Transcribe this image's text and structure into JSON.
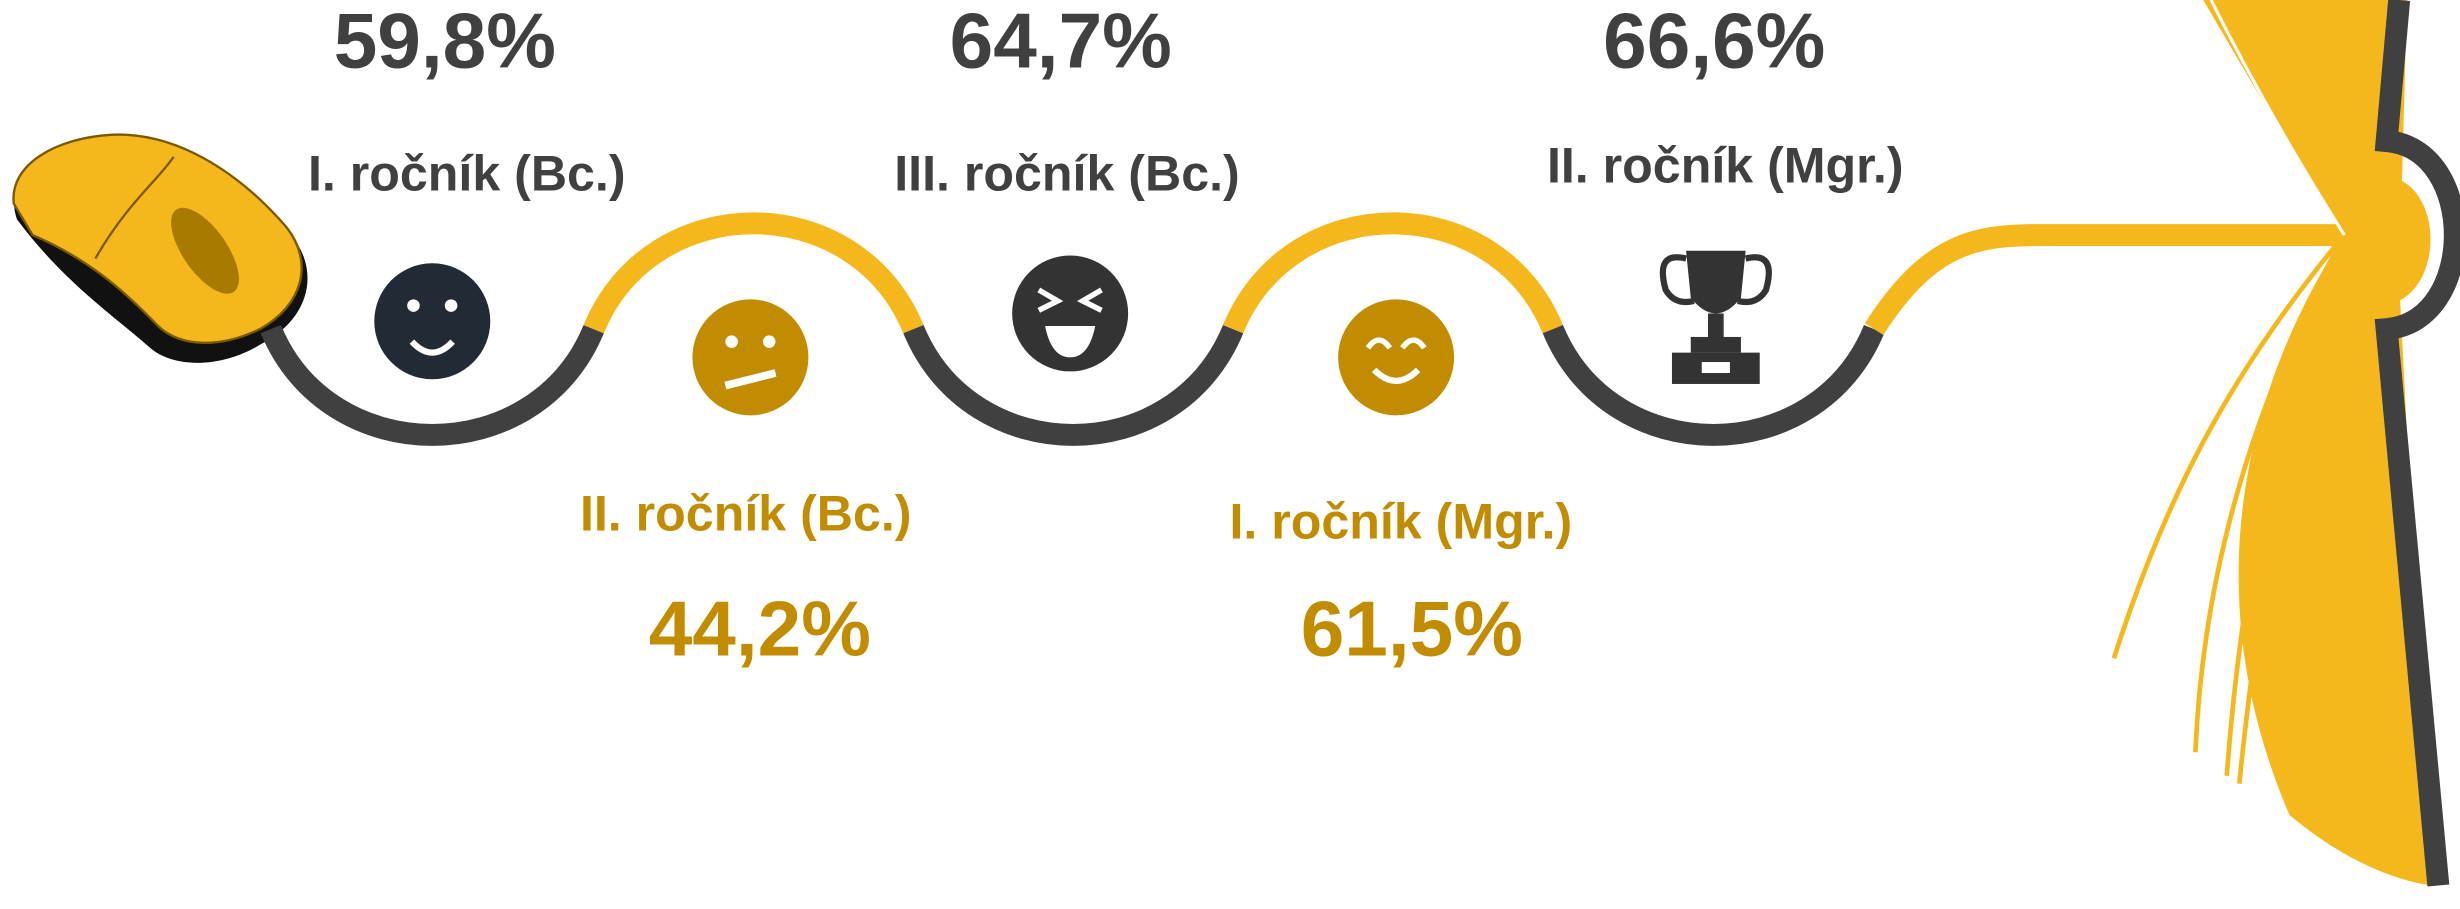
{
  "steps": [
    {
      "label": "I. ročník (Bc.)",
      "value": "59,8%"
    },
    {
      "label": "II. ročník (Bc.)",
      "value": "44,2%"
    },
    {
      "label": "III. ročník (Bc.)",
      "value": "64,7%"
    },
    {
      "label": "I. ročník (Mgr.)",
      "value": "61,5%"
    },
    {
      "label": "II. ročník (Mgr.)",
      "value": "66,6%"
    }
  ]
}
